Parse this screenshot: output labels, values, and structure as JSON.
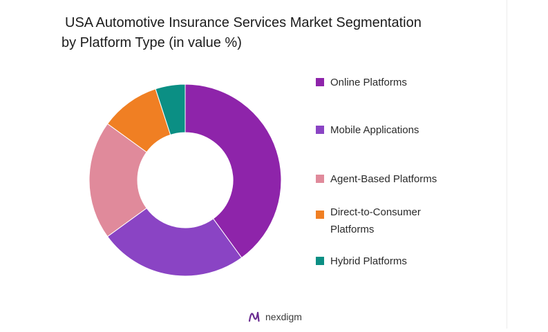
{
  "chart_data": {
    "type": "pie",
    "donut": true,
    "title_lines": [
      "USA Automotive Insurance Services Market Segmentation",
      "by Platform Type (in value %)"
    ],
    "categories": [
      "Online Platforms",
      "Mobile Applications",
      "Agent-Based Platforms",
      "Direct-to-Consumer Platforms",
      "Hybrid Platforms"
    ],
    "legend_lines": [
      [
        "Online Platforms"
      ],
      [
        "Mobile Applications"
      ],
      [
        "Agent-Based Platforms"
      ],
      [
        "Direct-to-Consumer",
        "Platforms"
      ],
      [
        "Hybrid Platforms"
      ]
    ],
    "values": [
      40,
      25,
      20,
      10,
      5
    ],
    "colors": [
      "#8e24aa",
      "#8a44c4",
      "#e08a9b",
      "#f07f23",
      "#0b8f84"
    ],
    "legend_placement": "right"
  },
  "brand": {
    "name": "nexdigm",
    "icon": "nexdigm-logo-icon",
    "color": "#6a2c91"
  }
}
